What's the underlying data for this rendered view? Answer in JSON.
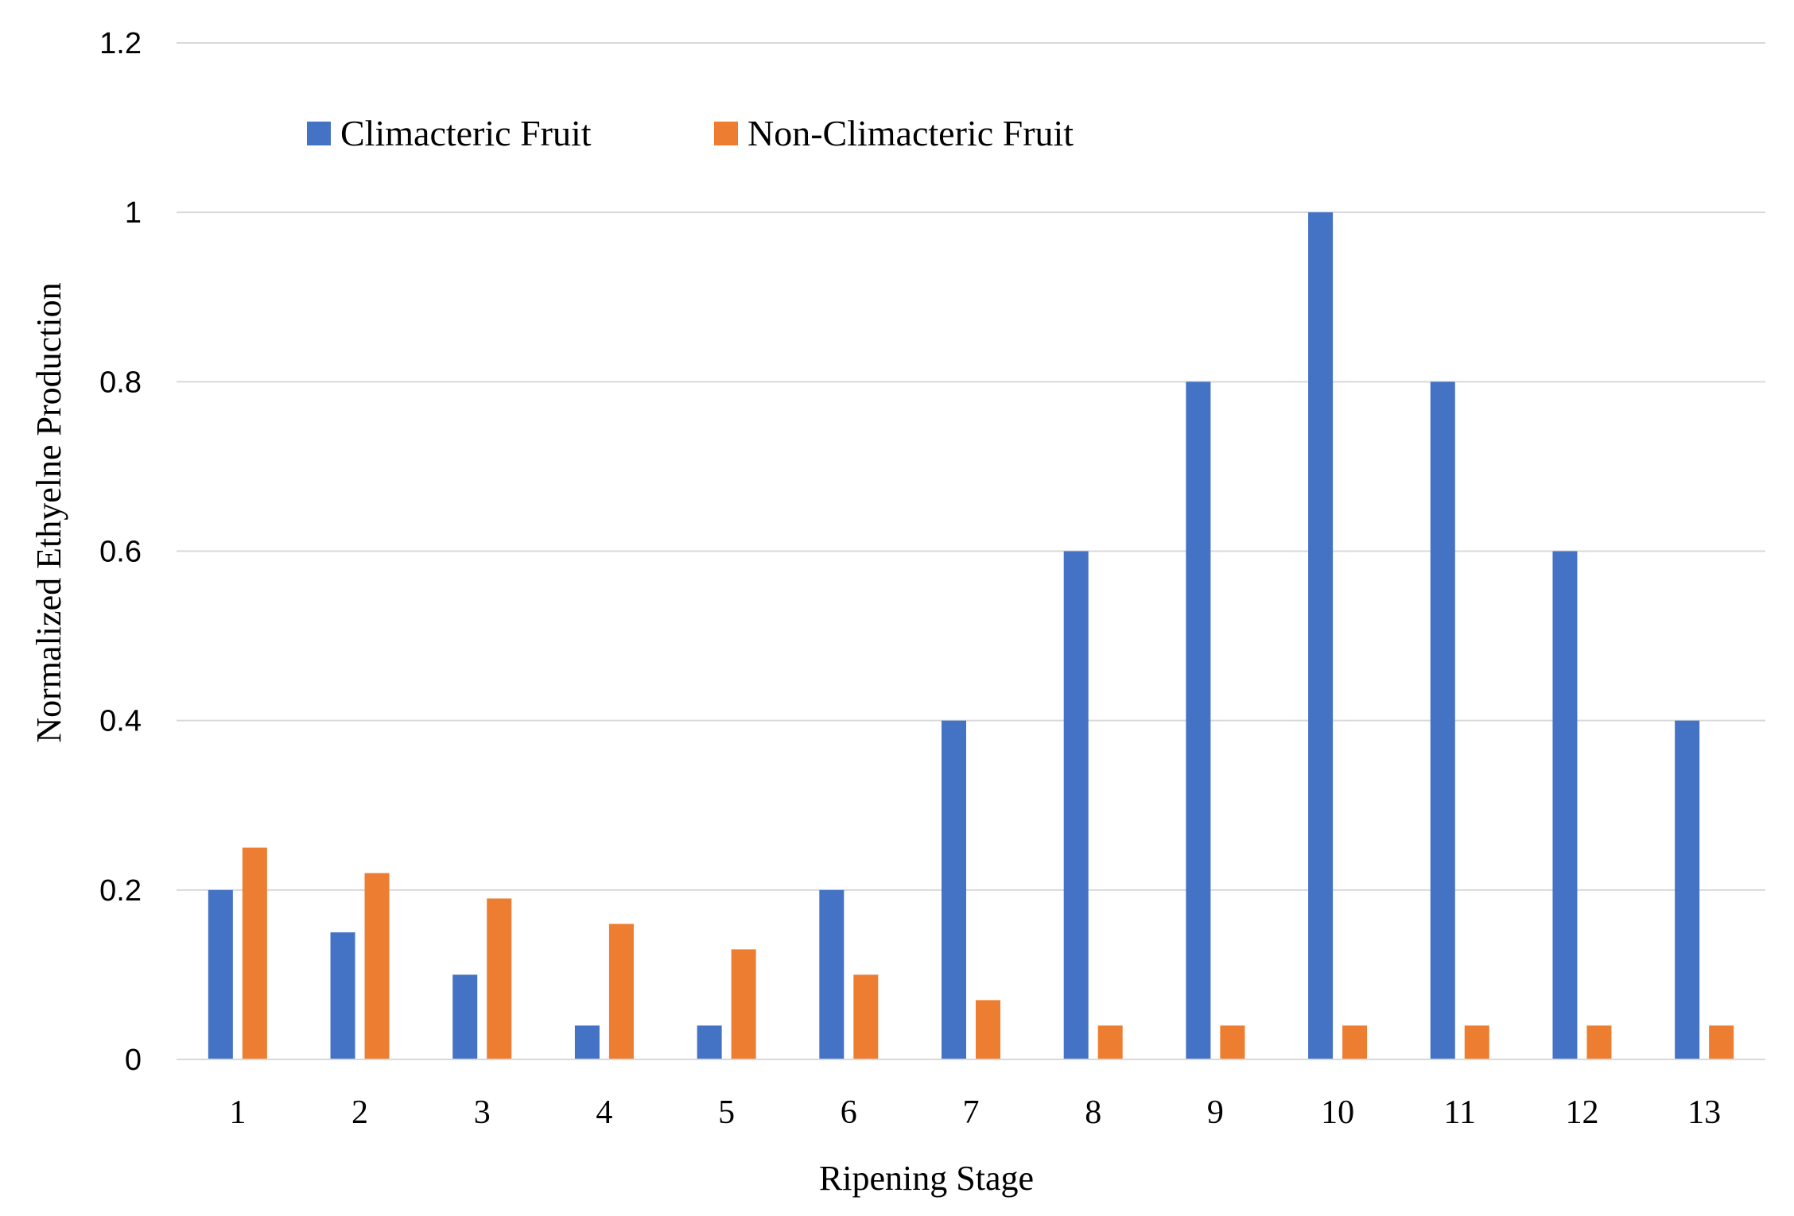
{
  "chart_data": {
    "type": "bar",
    "categories": [
      "1",
      "2",
      "3",
      "4",
      "5",
      "6",
      "7",
      "8",
      "9",
      "10",
      "11",
      "12",
      "13"
    ],
    "series": [
      {
        "name": "Climacteric Fruit",
        "color": "#4472C4",
        "values": [
          0.2,
          0.15,
          0.1,
          0.04,
          0.04,
          0.2,
          0.4,
          0.6,
          0.8,
          1.0,
          0.8,
          0.6,
          0.4
        ]
      },
      {
        "name": "Non-Climacteric Fruit",
        "color": "#ED7D31",
        "values": [
          0.25,
          0.22,
          0.19,
          0.16,
          0.13,
          0.1,
          0.07,
          0.04,
          0.04,
          0.04,
          0.04,
          0.04,
          0.04
        ]
      }
    ],
    "xlabel": "Ripening Stage",
    "ylabel": "Normalized Ethyelne Production",
    "ylim": [
      0,
      1.2
    ],
    "yticks": [
      "0",
      "0.2",
      "0.4",
      "0.6",
      "0.8",
      "1",
      "1.2"
    ],
    "grid": true,
    "legend": "top-left"
  }
}
